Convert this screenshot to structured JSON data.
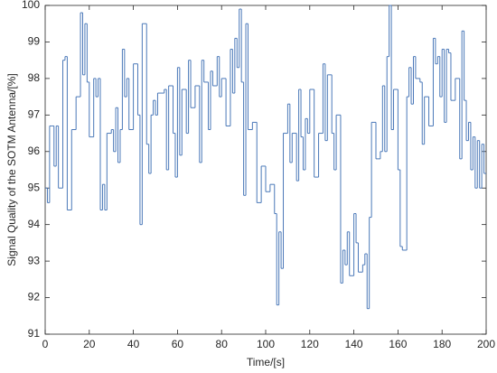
{
  "chart_data": {
    "type": "stairs",
    "x_label": "Time/[s]",
    "y_label": "Signal Quality of the SOTM Antenna/[%]",
    "color": "#4a78b8",
    "xlim": [
      0,
      200
    ],
    "xticks": [
      0,
      20,
      40,
      60,
      80,
      100,
      120,
      140,
      160,
      180,
      200
    ],
    "ylim": [
      91,
      100
    ],
    "yticks": [
      91,
      92,
      93,
      94,
      95,
      96,
      97,
      98,
      99,
      100
    ],
    "x": [
      0,
      1,
      2,
      3,
      4,
      5,
      6,
      8,
      9,
      10,
      12,
      14,
      16,
      17,
      18,
      19,
      20,
      22,
      23,
      24,
      25,
      26,
      27,
      28,
      30,
      31,
      32,
      33,
      34,
      35,
      36,
      37,
      38,
      40,
      42,
      43,
      44,
      46,
      47,
      48,
      49,
      50,
      51,
      54,
      55,
      56,
      58,
      59,
      60,
      61,
      62,
      64,
      65,
      66,
      68,
      70,
      71,
      72,
      74,
      75,
      76,
      78,
      79,
      80,
      82,
      84,
      85,
      86,
      87,
      88,
      89,
      90,
      91,
      92,
      94,
      96,
      98,
      100,
      102,
      104,
      105,
      106,
      107,
      108,
      110,
      111,
      112,
      114,
      115,
      116,
      117,
      118,
      119,
      120,
      122,
      124,
      126,
      127,
      128,
      130,
      131,
      132,
      134,
      135,
      136,
      137,
      138,
      140,
      141,
      142,
      144,
      145,
      146,
      147,
      148,
      150,
      152,
      153,
      154,
      155,
      156,
      157,
      158,
      160,
      161,
      162,
      164,
      165,
      166,
      167,
      168,
      170,
      171,
      172,
      174,
      176,
      177,
      178,
      179,
      180,
      181,
      182,
      183,
      184,
      186,
      188,
      189,
      190,
      191,
      192,
      193,
      194,
      195,
      196,
      197,
      198,
      199,
      200
    ],
    "values": [
      95,
      94.6,
      96.7,
      96.7,
      95.6,
      96.7,
      95,
      98.5,
      98.6,
      94.4,
      96.6,
      97.5,
      99.8,
      98.1,
      99.5,
      97.9,
      96.4,
      98,
      97.5,
      98,
      94.4,
      95.1,
      94.4,
      96.5,
      96.6,
      96,
      97.2,
      95.7,
      96.6,
      98.8,
      97.5,
      98,
      96.6,
      98.4,
      97,
      94,
      99.5,
      96.2,
      95.4,
      97,
      97.4,
      97,
      97.6,
      97.7,
      95.5,
      97.8,
      96.5,
      95.3,
      98.3,
      95.9,
      97.7,
      96.5,
      98.5,
      97.2,
      97.8,
      95.7,
      98.5,
      97.9,
      96.6,
      98.2,
      97.8,
      98.6,
      97.5,
      98,
      96.7,
      98.8,
      97.6,
      99.1,
      98.3,
      99.9,
      97.9,
      94.8,
      99.5,
      96.6,
      96.8,
      94.6,
      95.6,
      94.9,
      95.1,
      94.3,
      91.8,
      93.8,
      92.8,
      96.5,
      97.3,
      95.7,
      96.5,
      95.2,
      97.7,
      96.4,
      95.5,
      96.9,
      96.5,
      97.7,
      95.3,
      96.5,
      98.4,
      96.3,
      98.1,
      96.5,
      95.5,
      97,
      92.4,
      93.3,
      92.9,
      93.8,
      92.6,
      94.3,
      93.5,
      92.7,
      92.9,
      93.2,
      91.7,
      94.2,
      96.8,
      95.8,
      96,
      97.8,
      96,
      98.6,
      100,
      96.6,
      97.7,
      95.5,
      93.4,
      93.3,
      97.5,
      98.3,
      97.3,
      98.6,
      98,
      97.9,
      96.2,
      97.5,
      96.7,
      99.1,
      98.4,
      98.6,
      97.5,
      98.8,
      96.8,
      98.8,
      98.7,
      97.4,
      98,
      95.8,
      99.3,
      97.4,
      96.3,
      96.8,
      95.5,
      96.4,
      95,
      96.3,
      95,
      96.2,
      95.4,
      95.4
    ]
  }
}
